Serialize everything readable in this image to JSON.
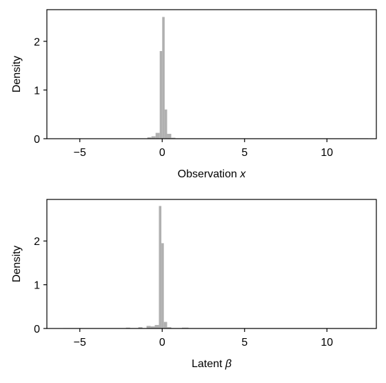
{
  "chart_data": [
    {
      "type": "bar",
      "xlabel": "Observation",
      "xlabel_var": "x",
      "ylabel": "Density",
      "xlim": [
        -7,
        13
      ],
      "ylim": [
        0,
        2.65
      ],
      "xticks": [
        -5,
        0,
        5,
        10
      ],
      "yticks": [
        0,
        1,
        2
      ],
      "tick_labels_x": [
        "−5",
        "0",
        "5",
        "10"
      ],
      "tick_labels_y": [
        "0",
        "1",
        "2"
      ],
      "bin_width": 0.25,
      "bar_color": "#b0b0b0",
      "bins": [
        {
          "x0": -0.9,
          "x1": -0.65,
          "density": 0.03
        },
        {
          "x0": -0.65,
          "x1": -0.4,
          "density": 0.05
        },
        {
          "x0": -0.4,
          "x1": -0.15,
          "density": 0.12
        },
        {
          "x0": -0.15,
          "x1": 0.0,
          "density": 1.8
        },
        {
          "x0": 0.0,
          "x1": 0.15,
          "density": 2.5
        },
        {
          "x0": 0.15,
          "x1": 0.3,
          "density": 0.6
        },
        {
          "x0": 0.3,
          "x1": 0.55,
          "density": 0.1
        },
        {
          "x0": 0.55,
          "x1": 0.8,
          "density": 0.02
        },
        {
          "x0": 0.8,
          "x1": 12.5,
          "density": 0.005
        }
      ]
    },
    {
      "type": "bar",
      "xlabel": "Latent",
      "xlabel_var": "β",
      "ylabel": "Density",
      "xlim": [
        -7,
        13
      ],
      "ylim": [
        0,
        2.95
      ],
      "xticks": [
        -5,
        0,
        5,
        10
      ],
      "yticks": [
        0,
        1,
        2
      ],
      "tick_labels_x": [
        "−5",
        "0",
        "5",
        "10"
      ],
      "tick_labels_y": [
        "0",
        "1",
        "2"
      ],
      "bin_width": 0.25,
      "bar_color": "#b0b0b0",
      "bins": [
        {
          "x0": -6.0,
          "x1": -2.2,
          "density": 0.005
        },
        {
          "x0": -2.2,
          "x1": -1.95,
          "density": 0.02
        },
        {
          "x0": -1.95,
          "x1": -1.45,
          "density": 0.01
        },
        {
          "x0": -1.45,
          "x1": -1.2,
          "density": 0.03
        },
        {
          "x0": -1.2,
          "x1": -0.95,
          "density": 0.01
        },
        {
          "x0": -0.95,
          "x1": -0.7,
          "density": 0.06
        },
        {
          "x0": -0.7,
          "x1": -0.45,
          "density": 0.05
        },
        {
          "x0": -0.45,
          "x1": -0.2,
          "density": 0.08
        },
        {
          "x0": -0.2,
          "x1": -0.05,
          "density": 2.8
        },
        {
          "x0": -0.05,
          "x1": 0.1,
          "density": 1.95
        },
        {
          "x0": 0.1,
          "x1": 0.3,
          "density": 0.15
        },
        {
          "x0": 0.3,
          "x1": 0.55,
          "density": 0.03
        },
        {
          "x0": 0.55,
          "x1": 1.2,
          "density": 0.01
        },
        {
          "x0": 1.2,
          "x1": 1.6,
          "density": 0.02
        },
        {
          "x0": 1.6,
          "x1": 12.5,
          "density": 0.005
        }
      ]
    }
  ]
}
